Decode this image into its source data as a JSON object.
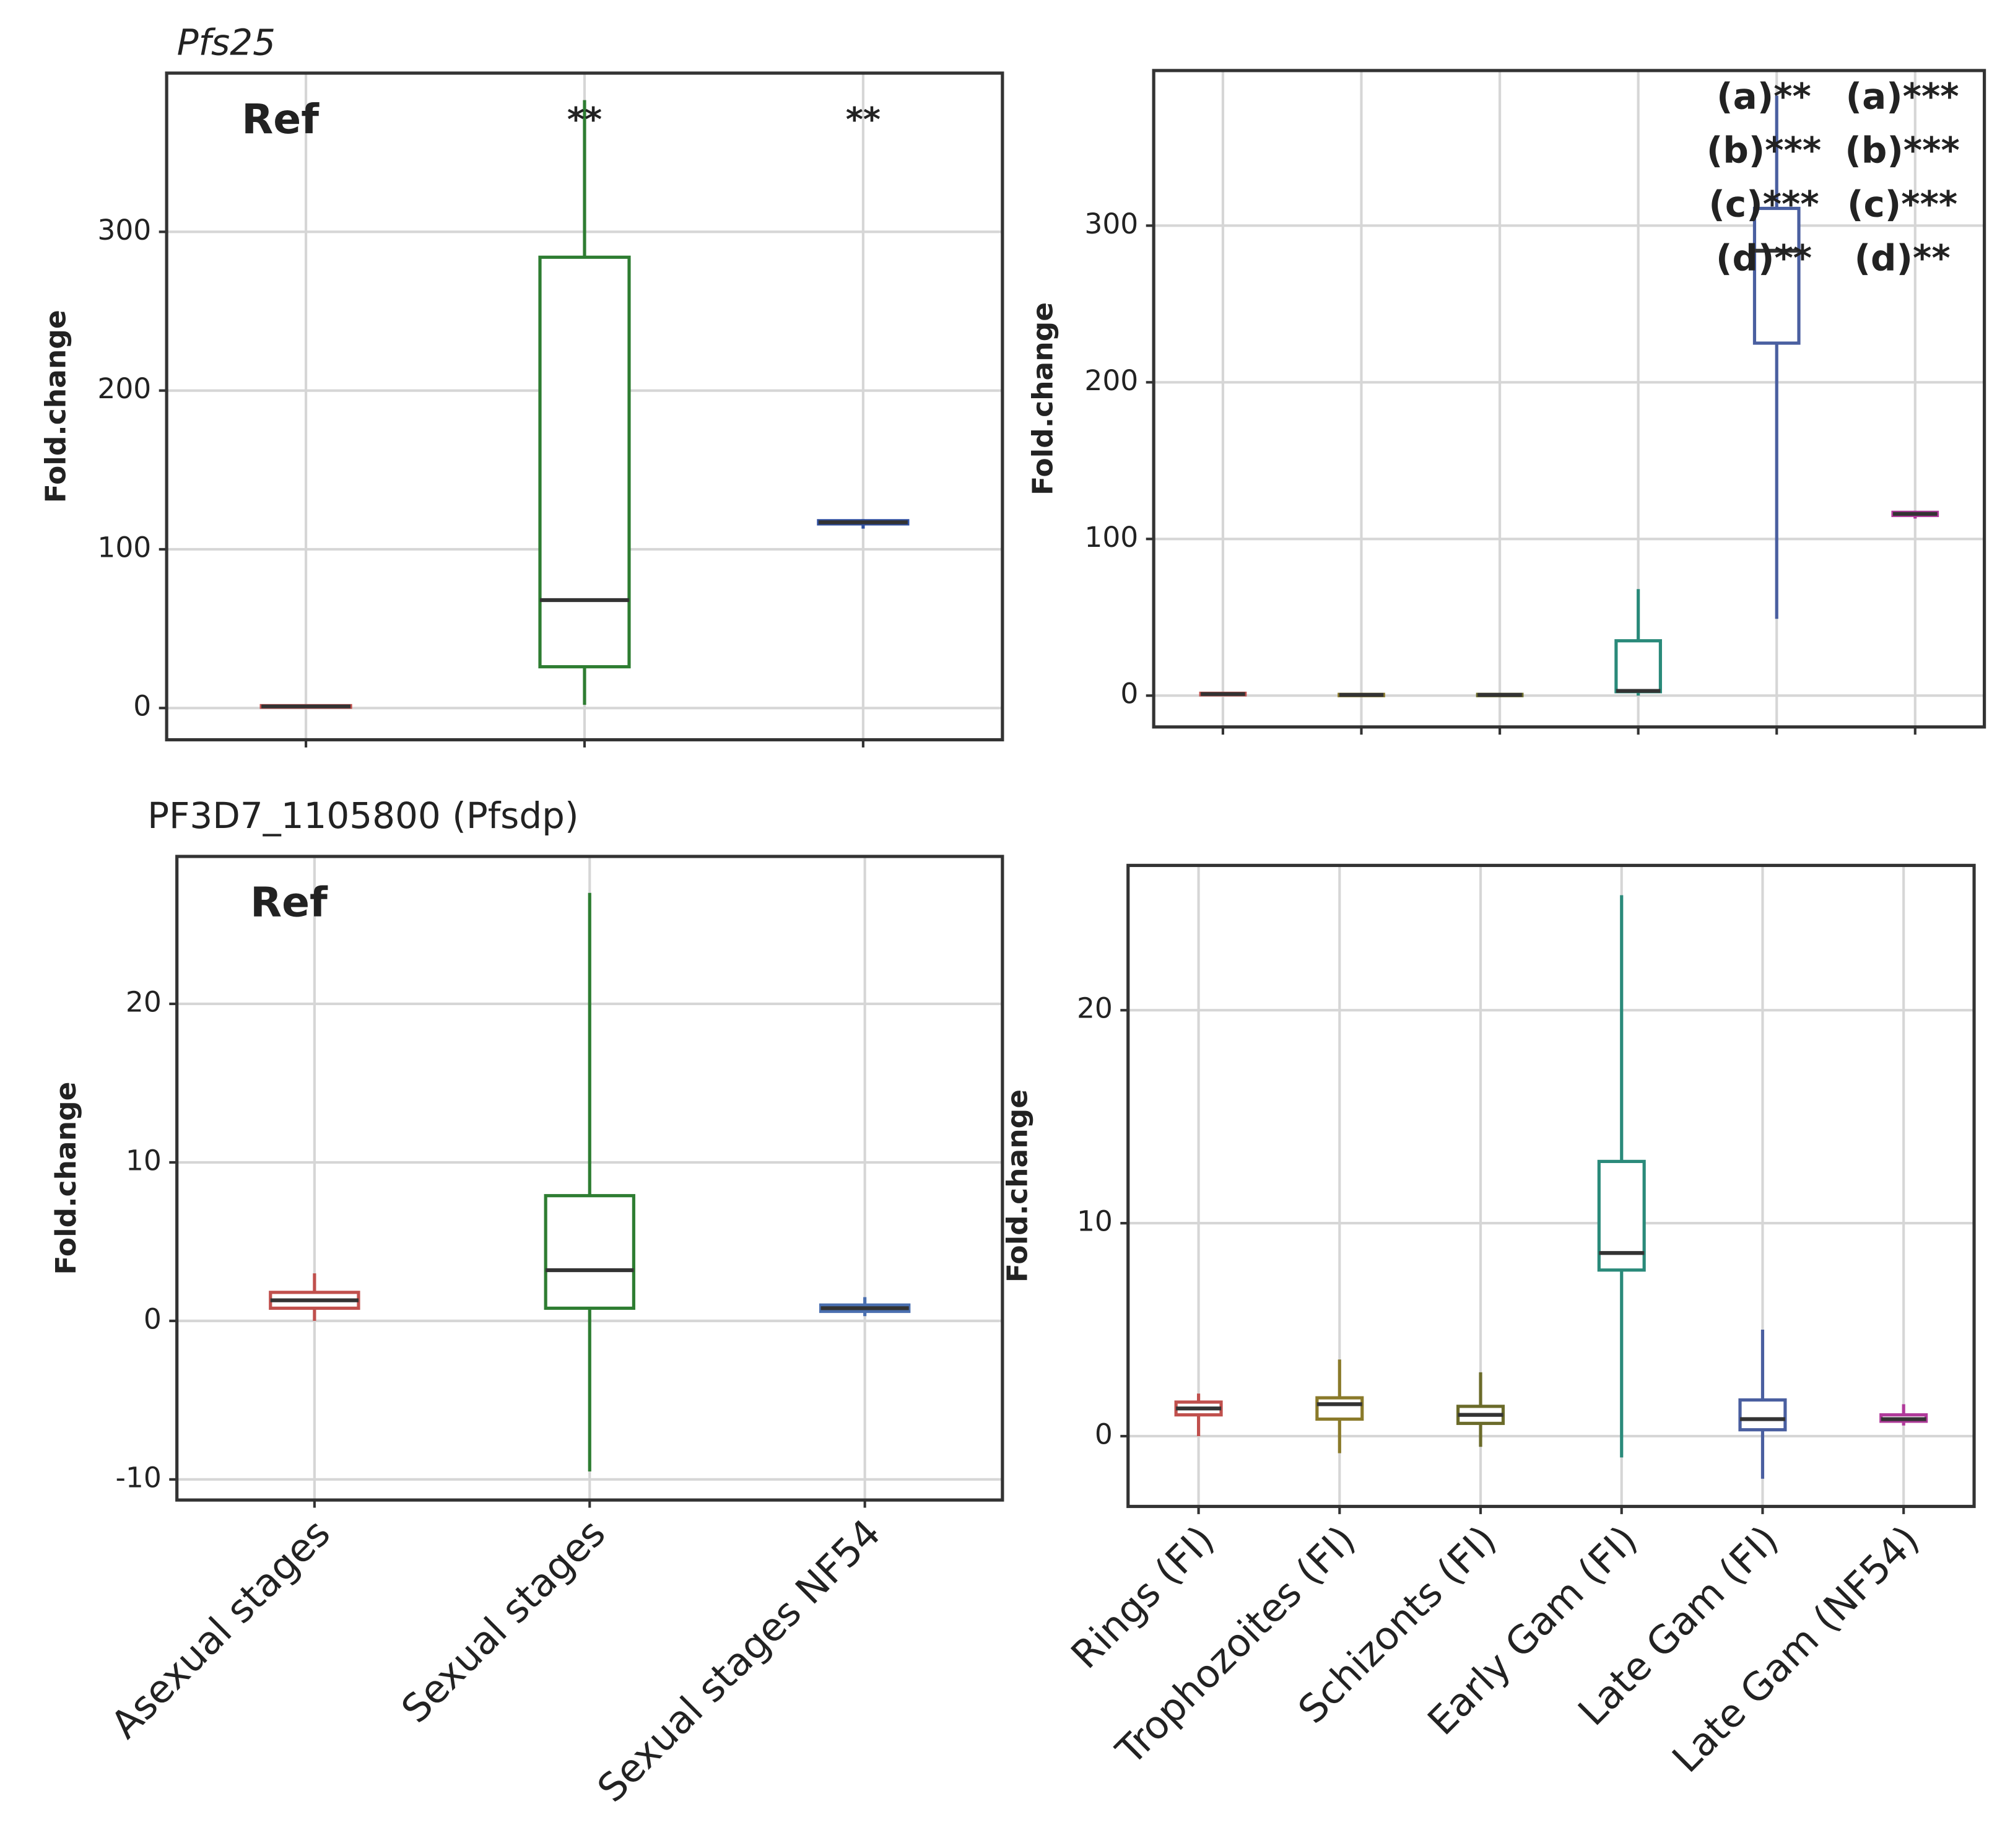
{
  "chart_data": [
    {
      "type": "box",
      "title": "Pfs25",
      "ylabel": "Fold.change",
      "categories": [
        null,
        null,
        null
      ],
      "colors": [
        "#c0504d",
        "#2e7d32",
        "#2f4f9f"
      ],
      "min": [
        0,
        2,
        113
      ],
      "q1": [
        0.5,
        26,
        116
      ],
      "median": [
        1,
        68,
        117
      ],
      "q3": [
        1.5,
        284,
        118
      ],
      "max": [
        2,
        383,
        119
      ],
      "annotations": [
        [
          "Ref"
        ],
        [
          "**"
        ],
        [
          "**"
        ]
      ],
      "ylim": [
        -20,
        400
      ],
      "yticks": [
        0,
        100,
        200,
        300
      ],
      "grid": true
    },
    {
      "type": "box",
      "ylabel": "Fold.change",
      "categories": [
        null,
        null,
        null,
        null,
        null,
        null
      ],
      "colors": [
        "#c0504d",
        "#8a7a2a",
        "#6b6b2a",
        "#2a8a7a",
        "#4a5fa0",
        "#b03a9a"
      ],
      "min": [
        0,
        0,
        0,
        0,
        49,
        113
      ],
      "q1": [
        0.5,
        0.2,
        0.2,
        2.5,
        225,
        115
      ],
      "median": [
        1,
        0.5,
        0.5,
        3,
        284,
        116
      ],
      "q3": [
        1.5,
        0.8,
        0.8,
        35,
        311,
        117
      ],
      "max": [
        2,
        1,
        1,
        68,
        383,
        118
      ],
      "annotations": [
        null,
        null,
        null,
        null,
        [
          "(a)**",
          "(b)***",
          "(c)***",
          "(d)**"
        ],
        [
          "(a)***",
          "(b)***",
          "(c)***",
          "(d)**"
        ]
      ],
      "ylim": [
        -20,
        399
      ],
      "yticks": [
        0,
        100,
        200,
        300
      ],
      "grid": true
    },
    {
      "type": "box",
      "title": "PF3D7_1105800 (Pfsdp)",
      "ylabel": "Fold.change",
      "categories": [
        "Asexual stages",
        "Sexual stages",
        "Sexual stages NF54"
      ],
      "colors": [
        "#c0504d",
        "#2e7d32",
        "#4a6fb0"
      ],
      "min": [
        0,
        -9.5,
        0.3
      ],
      "q1": [
        0.8,
        0.8,
        0.6
      ],
      "median": [
        1.3,
        3.2,
        0.8
      ],
      "q3": [
        1.8,
        7.9,
        1
      ],
      "max": [
        3,
        27,
        1.5
      ],
      "annotations": [
        [
          "Ref"
        ],
        null,
        null
      ],
      "ylim": [
        -11.3,
        29.3
      ],
      "yticks": [
        -10,
        0,
        10,
        20
      ],
      "grid": true
    },
    {
      "type": "box",
      "ylabel": "Fold.change",
      "categories": [
        "Rings (FI)",
        "Trophozoites (FI)",
        "Schizonts (FI)",
        "Early Gam (FI)",
        "Late Gam (FI)",
        "Late Gam (NF54)"
      ],
      "colors": [
        "#c0504d",
        "#8a7a2a",
        "#6b6b2a",
        "#2a8a7a",
        "#4a5fa0",
        "#b03a9a"
      ],
      "min": [
        0,
        -0.8,
        -0.5,
        -1,
        -2,
        0.5
      ],
      "q1": [
        1,
        0.8,
        0.6,
        7.8,
        0.3,
        0.7
      ],
      "median": [
        1.3,
        1.5,
        1,
        8.6,
        0.8,
        0.8
      ],
      "q3": [
        1.6,
        1.8,
        1.4,
        12.9,
        1.7,
        1
      ],
      "max": [
        2,
        3.6,
        3,
        25.4,
        5,
        1.5
      ],
      "annotations": [
        null,
        null,
        null,
        null,
        null,
        null
      ],
      "ylim": [
        -3.3,
        26.8
      ],
      "yticks": [
        0,
        10,
        20
      ],
      "grid": true
    }
  ]
}
